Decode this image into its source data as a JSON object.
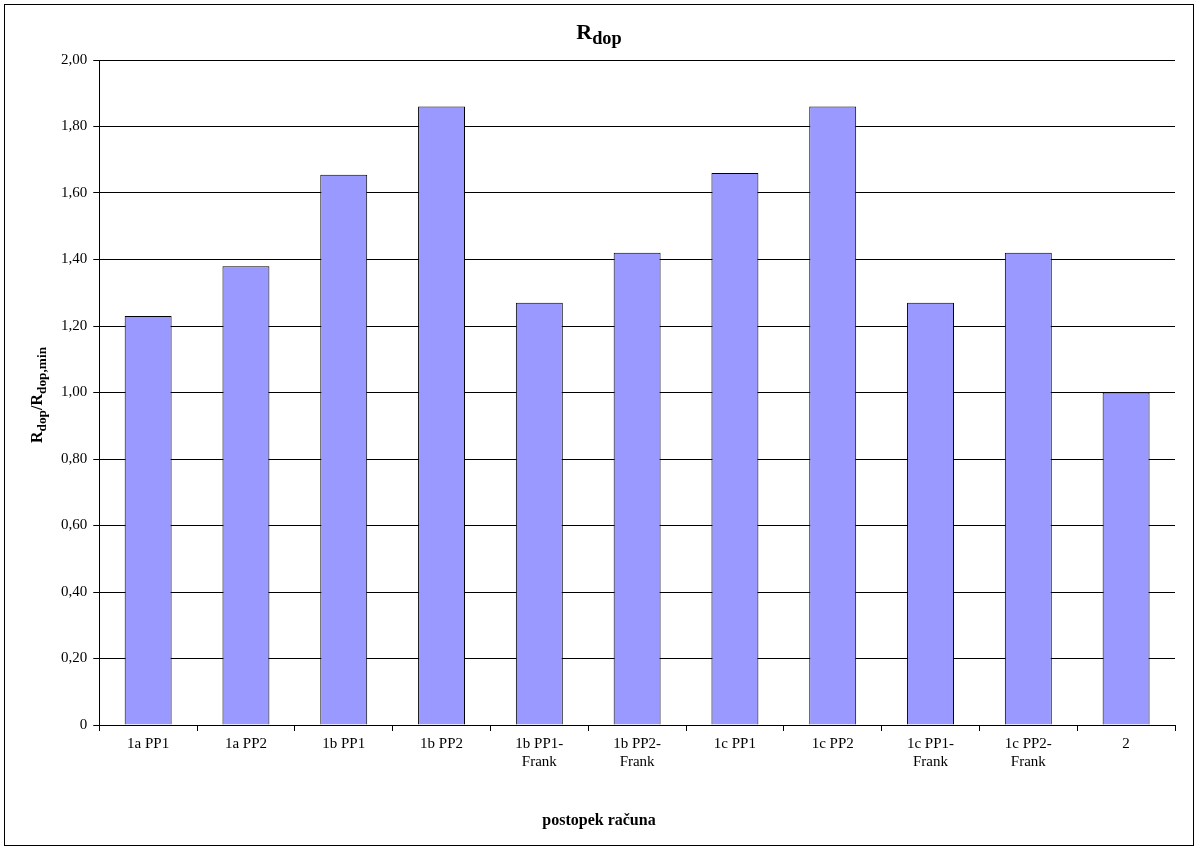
{
  "chart_data": {
    "type": "bar",
    "title": "R$_{dop}$",
    "xlabel": "postopek računa",
    "ylabel": "R$_{dop}$/R$_{dop,min}$",
    "categories": [
      "1a PP1",
      "1a PP2",
      "1b PP1",
      "1b PP2",
      "1b PP1-Frank",
      "1b PP2-Frank",
      "1c PP1",
      "1c PP2",
      "1c PP1-Frank",
      "1c PP2-Frank",
      "2"
    ],
    "values": [
      1.23,
      1.38,
      1.655,
      1.86,
      1.27,
      1.42,
      1.66,
      1.86,
      1.27,
      1.42,
      1.0
    ],
    "color": "#9999ff",
    "ylim": [
      0,
      2
    ],
    "yticks": [
      0,
      {
        "value": 0.2,
        "label": "0,20"
      },
      {
        "value": 0.4,
        "label": "0,40"
      },
      {
        "value": 0.6,
        "label": "0,60"
      },
      {
        "value": 0.8,
        "label": "0,80"
      },
      {
        "value": 1,
        "label": "1,00"
      },
      {
        "value": 1.2,
        "label": "1,20"
      },
      {
        "value": 1.4,
        "label": "1,40"
      },
      {
        "value": 1.6,
        "label": "1,60"
      },
      {
        "value": 1.8,
        "label": "1,80"
      },
      {
        "value": 2,
        "label": "2,00"
      }
    ],
    "grid": "y"
  }
}
